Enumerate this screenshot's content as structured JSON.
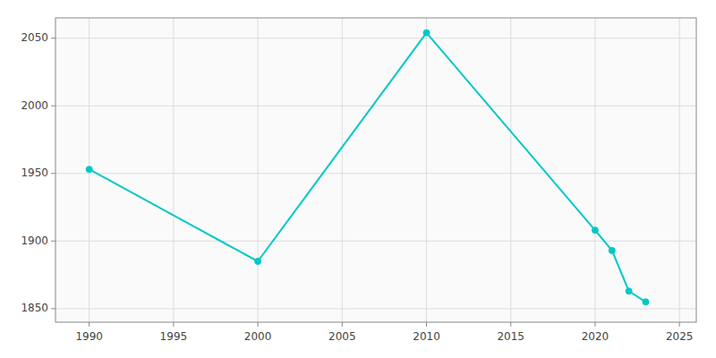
{
  "chart_data": {
    "type": "line",
    "x": [
      1990,
      2000,
      2010,
      2020,
      2021,
      2022,
      2023
    ],
    "values": [
      1953,
      1885,
      2054,
      1908,
      1893,
      1863,
      1855
    ],
    "color": "#00c8c8",
    "marker": "circle",
    "xlim": [
      1988,
      2026
    ],
    "ylim": [
      1840,
      2065
    ],
    "xticks": [
      1990,
      1995,
      2000,
      2005,
      2010,
      2015,
      2020,
      2025
    ],
    "yticks": [
      1850,
      1900,
      1950,
      2000,
      2050
    ],
    "grid": true
  }
}
